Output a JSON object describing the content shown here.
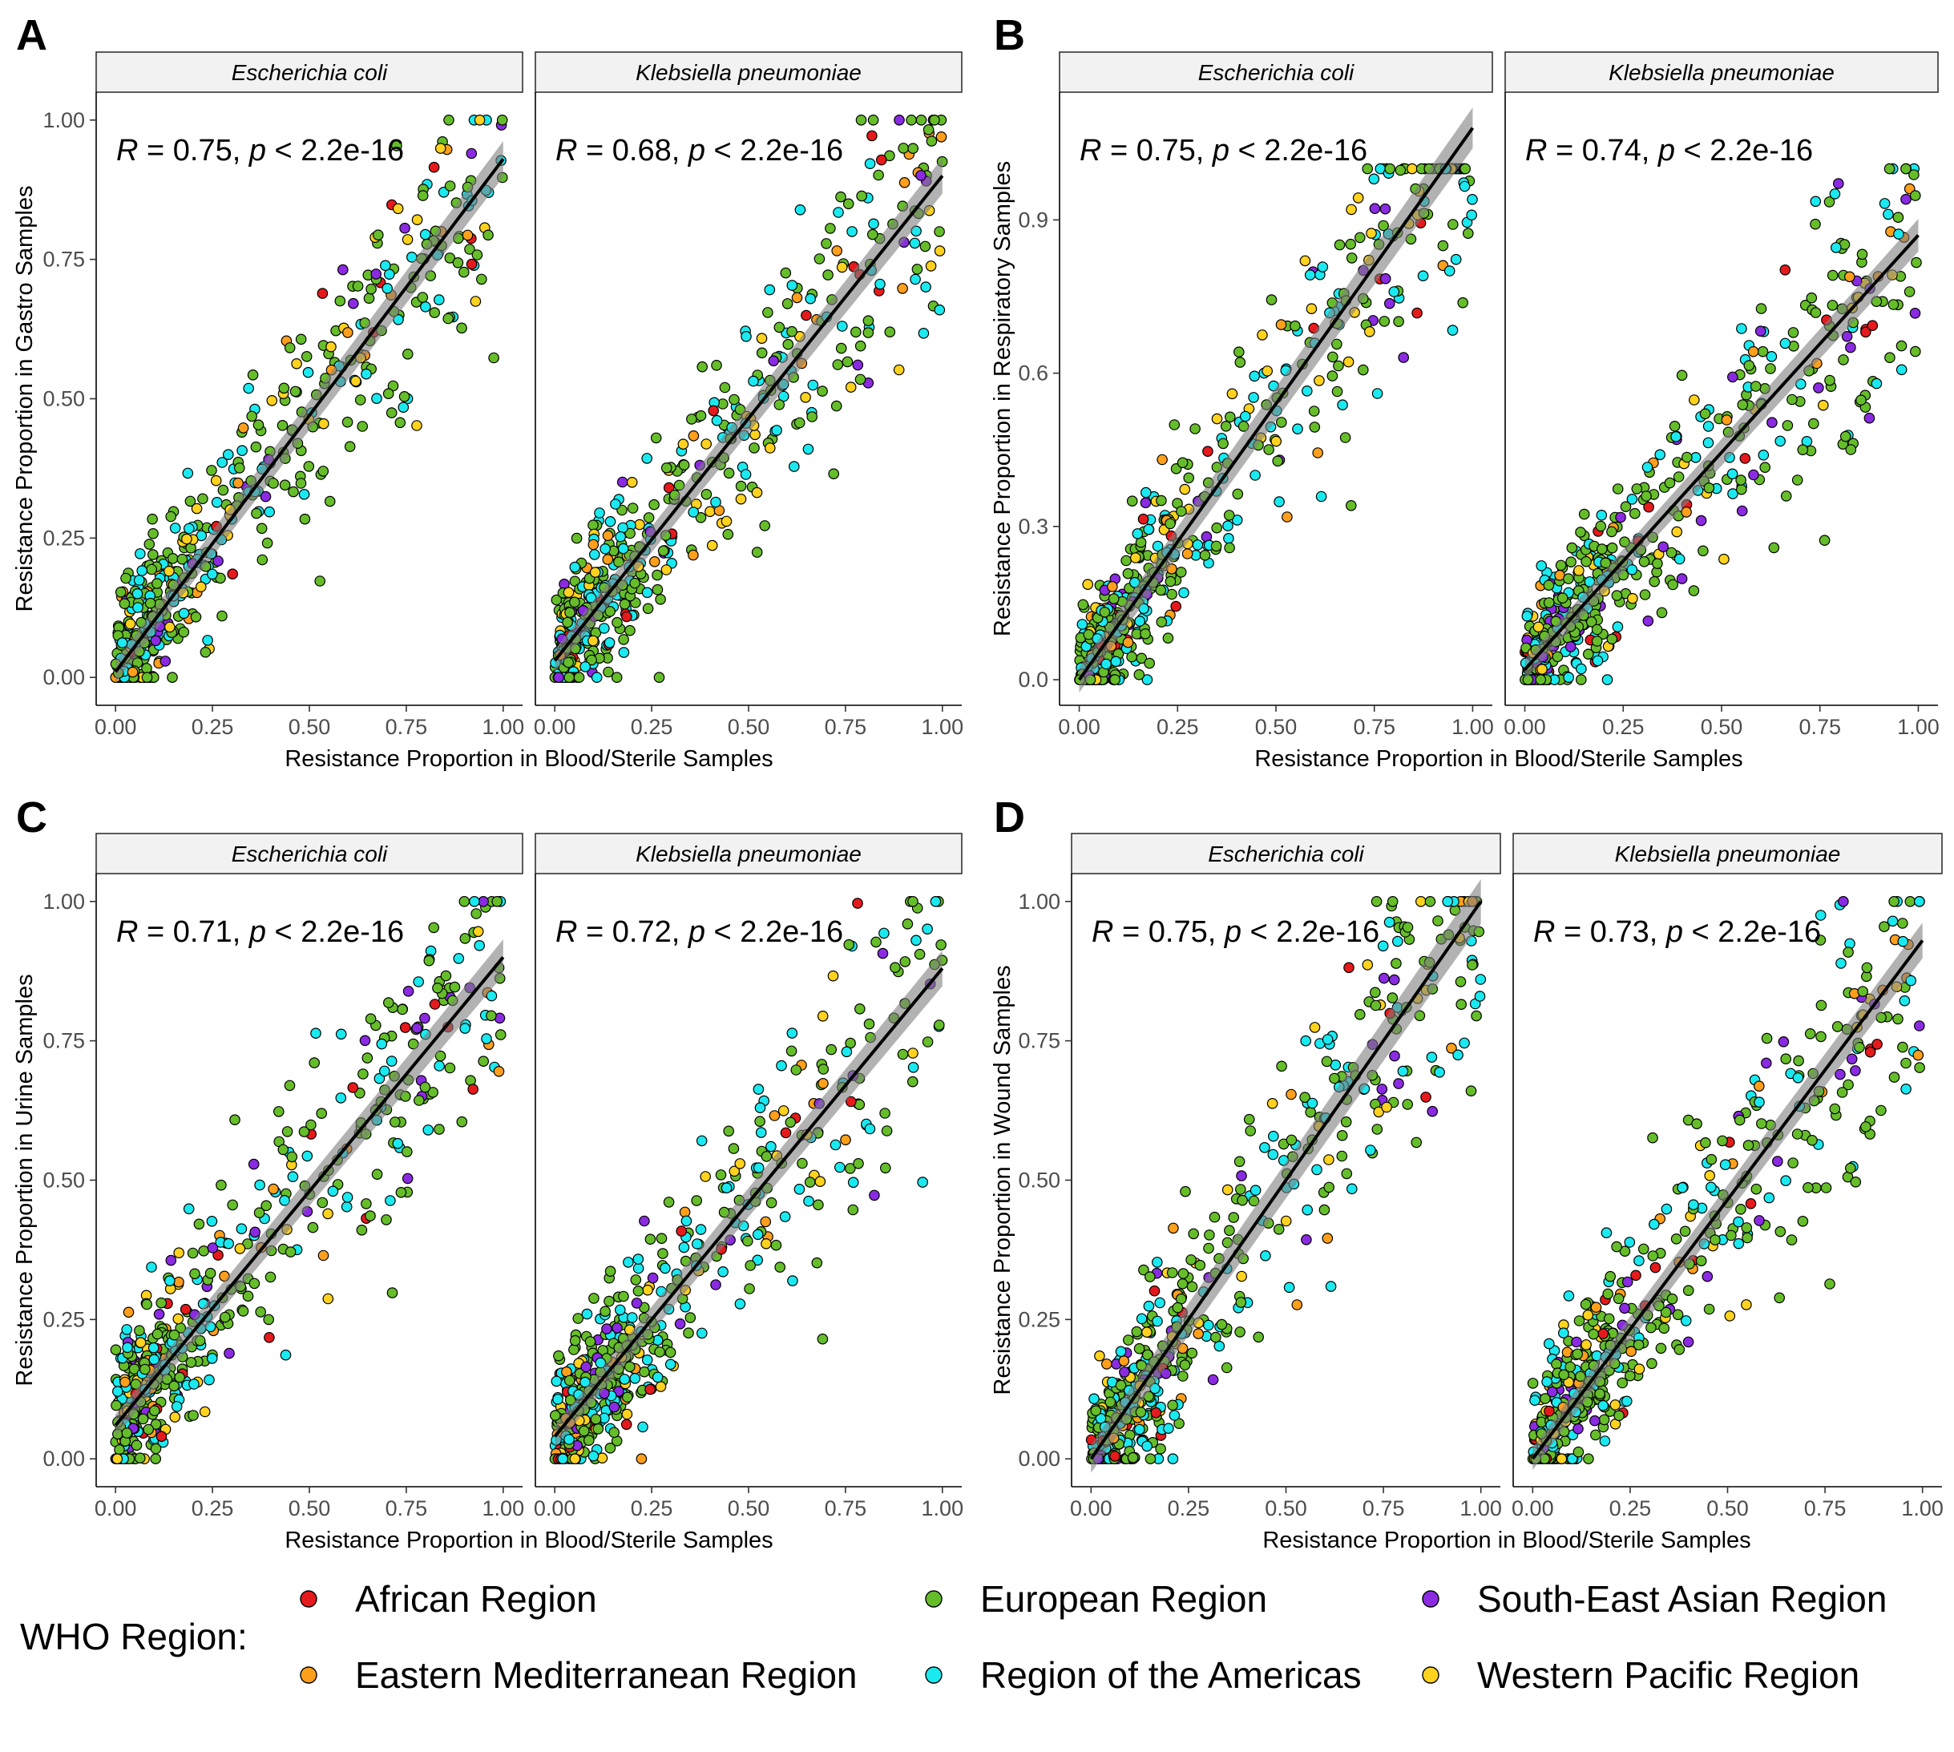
{
  "legend": {
    "title": "WHO Region:",
    "items": [
      {
        "label": "African Region",
        "color": "#e41a1c"
      },
      {
        "label": "European Region",
        "color": "#66bd2a"
      },
      {
        "label": "South-East Asian Region",
        "color": "#8a2be2"
      },
      {
        "label": "Eastern Mediterranean Region",
        "color": "#ff9f1c"
      },
      {
        "label": "Region of the Americas",
        "color": "#1be9f0"
      },
      {
        "label": "Western Pacific Region",
        "color": "#ffd21f"
      }
    ]
  },
  "chart_data": [
    {
      "tag": "A",
      "type": "scatter",
      "xlabel": "Resistance Proportion in Blood/Sterile Samples",
      "ylabel": "Resistance Proportion in Gastro Samples",
      "xlim": [
        -0.05,
        1.05
      ],
      "ylim": [
        -0.05,
        1.05
      ],
      "xticks": [
        "0.00",
        "0.25",
        "0.50",
        "0.75",
        "1.00"
      ],
      "yticks": [
        "0.00",
        "0.25",
        "0.50",
        "0.75",
        "1.00"
      ],
      "ytick_values": [
        0,
        0.25,
        0.5,
        0.75,
        1.0
      ],
      "grid": false,
      "facets": [
        {
          "strip": "Escherichia coli",
          "R": "0.75",
          "p": "2.2e-16",
          "fit": [
            0.01,
            0.93
          ],
          "ci": 0.02
        },
        {
          "strip": "Klebsiella pneumoniae",
          "R": "0.68",
          "p": "2.2e-16",
          "fit": [
            0.03,
            0.9
          ],
          "ci": 0.02
        }
      ]
    },
    {
      "tag": "B",
      "type": "scatter",
      "xlabel": "Resistance Proportion in Blood/Sterile Samples",
      "ylabel": "Resistance Proportion in Respiratory Samples",
      "xlim": [
        -0.05,
        1.05
      ],
      "ylim": [
        -0.05,
        1.15
      ],
      "xticks": [
        "0.00",
        "0.25",
        "0.50",
        "0.75",
        "1.00"
      ],
      "yticks": [
        "0.0",
        "0.3",
        "0.6",
        "0.9"
      ],
      "ytick_values": [
        0,
        0.3,
        0.6,
        0.9
      ],
      "grid": false,
      "facets": [
        {
          "strip": "Escherichia coli",
          "R": "0.75",
          "p": "2.2e-16",
          "fit": [
            0.0,
            1.08
          ],
          "ci": 0.025
        },
        {
          "strip": "Klebsiella pneumoniae",
          "R": "0.74",
          "p": "2.2e-16",
          "fit": [
            0.02,
            0.87
          ],
          "ci": 0.02
        }
      ]
    },
    {
      "tag": "C",
      "type": "scatter",
      "xlabel": "Resistance Proportion in Blood/Sterile Samples",
      "ylabel": "Resistance Proportion in Urine Samples",
      "xlim": [
        -0.05,
        1.05
      ],
      "ylim": [
        -0.05,
        1.05
      ],
      "xticks": [
        "0.00",
        "0.25",
        "0.50",
        "0.75",
        "1.00"
      ],
      "yticks": [
        "0.00",
        "0.25",
        "0.50",
        "0.75",
        "1.00"
      ],
      "ytick_values": [
        0,
        0.25,
        0.5,
        0.75,
        1.0
      ],
      "grid": false,
      "facets": [
        {
          "strip": "Escherichia coli",
          "R": "0.71",
          "p": "2.2e-16",
          "fit": [
            0.06,
            0.9
          ],
          "ci": 0.02
        },
        {
          "strip": "Klebsiella pneumoniae",
          "R": "0.72",
          "p": "2.2e-16",
          "fit": [
            0.04,
            0.88
          ],
          "ci": 0.02
        }
      ]
    },
    {
      "tag": "D",
      "type": "scatter",
      "xlabel": "Resistance Proportion in Blood/Sterile Samples",
      "ylabel": "Resistance Proportion in Wound Samples",
      "xlim": [
        -0.05,
        1.05
      ],
      "ylim": [
        -0.05,
        1.05
      ],
      "xticks": [
        "0.00",
        "0.25",
        "0.50",
        "0.75",
        "1.00"
      ],
      "yticks": [
        "0.00",
        "0.25",
        "0.50",
        "0.75",
        "1.00"
      ],
      "ytick_values": [
        0,
        0.25,
        0.5,
        0.75,
        1.0
      ],
      "grid": false,
      "facets": [
        {
          "strip": "Escherichia coli",
          "R": "0.75",
          "p": "2.2e-16",
          "fit": [
            0.0,
            1.0
          ],
          "ci": 0.025
        },
        {
          "strip": "Klebsiella pneumoniae",
          "R": "0.73",
          "p": "2.2e-16",
          "fit": [
            0.0,
            0.93
          ],
          "ci": 0.02
        }
      ]
    }
  ]
}
